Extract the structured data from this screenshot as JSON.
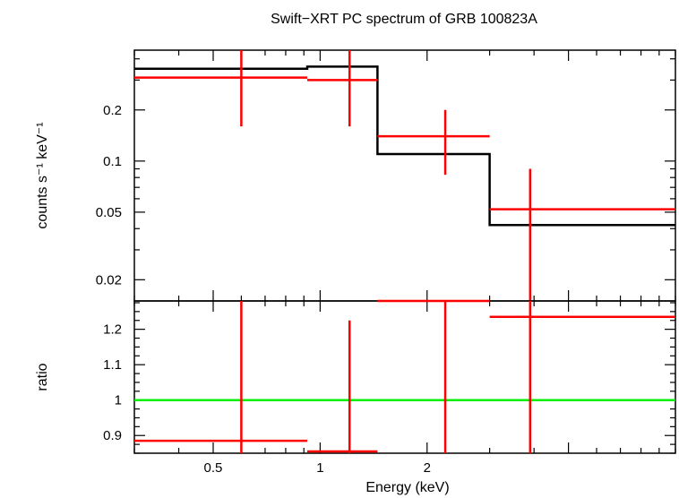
{
  "chart_data": [
    {
      "type": "line",
      "title": "Swift−XRT PC spectrum of GRB 100823A",
      "ylabel": "counts s⁻¹ keV⁻¹",
      "yscale": "log",
      "xscale": "log",
      "xlim": [
        0.3,
        10
      ],
      "ylim": [
        0.015,
        0.45
      ],
      "yticks": [
        {
          "v": 0.02,
          "label": "0.02"
        },
        {
          "v": 0.05,
          "label": "0.05"
        },
        {
          "v": 0.1,
          "label": "0.1"
        },
        {
          "v": 0.2,
          "label": "0.2"
        }
      ],
      "model": {
        "color": "#000000",
        "steps": [
          {
            "x0": 0.3,
            "x1": 0.92,
            "y": 0.35
          },
          {
            "x0": 0.92,
            "x1": 1.45,
            "y": 0.36
          },
          {
            "x0": 1.45,
            "x1": 3.0,
            "y": 0.11
          },
          {
            "x0": 3.0,
            "x1": 10,
            "y": 0.042
          }
        ]
      },
      "data": {
        "color": "#ff0000",
        "points": [
          {
            "x": 0.6,
            "xlo": 0.3,
            "xhi": 0.92,
            "y": 0.31,
            "ylo": 0.16,
            "yhi": 0.45
          },
          {
            "x": 1.21,
            "xlo": 0.92,
            "xhi": 1.45,
            "y": 0.3,
            "ylo": 0.16,
            "yhi": 0.45
          },
          {
            "x": 2.25,
            "xlo": 1.45,
            "xhi": 3.0,
            "y": 0.14,
            "ylo": 0.083,
            "yhi": 0.2
          },
          {
            "x": 3.9,
            "xlo": 3.0,
            "xhi": 10,
            "y": 0.052,
            "ylo": 0.012,
            "yhi": 0.09
          }
        ]
      }
    },
    {
      "type": "line",
      "ylabel": "ratio",
      "xlabel": "Energy (keV)",
      "xscale": "log",
      "xlim": [
        0.3,
        10
      ],
      "ylim": [
        0.85,
        1.28
      ],
      "yticks": [
        {
          "v": 0.9,
          "label": "0.9"
        },
        {
          "v": 1.0,
          "label": "1"
        },
        {
          "v": 1.1,
          "label": "1.1"
        },
        {
          "v": 1.2,
          "label": "1.2"
        }
      ],
      "xticks": [
        {
          "v": 0.5,
          "label": "0.5"
        },
        {
          "v": 1,
          "label": "1"
        },
        {
          "v": 2,
          "label": "2"
        }
      ],
      "reference": {
        "y": 1.0,
        "color": "#00ee00"
      },
      "data": {
        "color": "#ff0000",
        "points": [
          {
            "x": 0.6,
            "xlo": 0.3,
            "xhi": 0.92,
            "y": 0.885,
            "ylo": 0.85,
            "yhi": 1.28
          },
          {
            "x": 1.21,
            "xlo": 0.92,
            "xhi": 1.45,
            "y": 0.855,
            "ylo": 0.85,
            "yhi": 1.225
          },
          {
            "x": 2.25,
            "xlo": 1.45,
            "xhi": 3.0,
            "y": 1.28,
            "ylo": 0.85,
            "yhi": 1.28
          },
          {
            "x": 3.9,
            "xlo": 3.0,
            "xhi": 10,
            "y": 1.235,
            "ylo": 0.85,
            "yhi": 1.28
          }
        ]
      }
    }
  ]
}
